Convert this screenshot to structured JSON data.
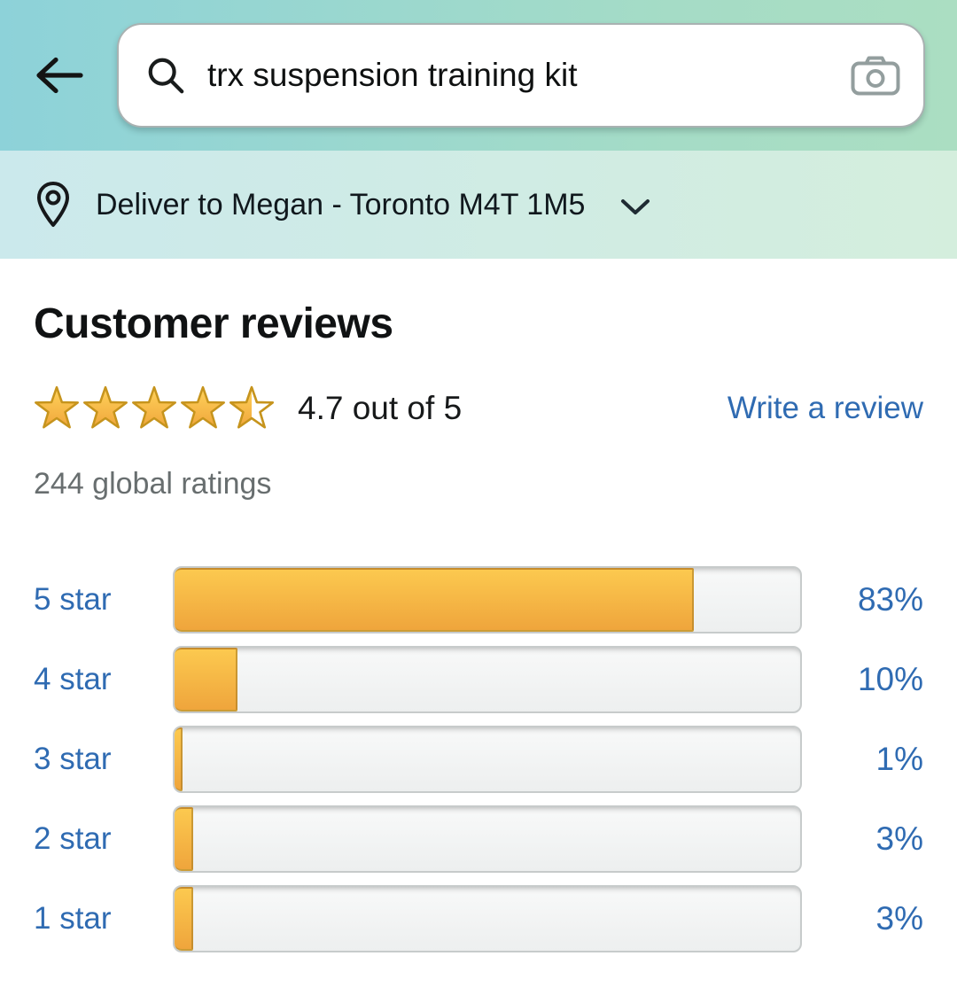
{
  "search": {
    "query": "trx suspension training kit"
  },
  "delivery": {
    "text": "Deliver to Megan - Toronto M4T 1M5"
  },
  "reviews": {
    "title": "Customer reviews",
    "rating_value": 4.7,
    "rating_max": 5,
    "rating_text": "4.7 out of 5",
    "write_review_label": "Write a review",
    "global_ratings_text": "244 global ratings"
  },
  "icons": {
    "back": "arrow-left",
    "search": "magnifier",
    "camera": "camera-outline",
    "location": "map-pin-outline",
    "expand": "chevron-down",
    "star": "five-point-star"
  },
  "colors": {
    "accent_blue": "#2f6bb2",
    "header_gradient_left": "#8dd2d9",
    "header_gradient_right": "#abdec2",
    "deliver_gradient_left": "#cbe9ec",
    "deliver_gradient_right": "#d4eedd",
    "star_gold_top": "#ffd35b",
    "star_gold_bottom": "#f0a63c",
    "star_stroke": "#c6941d",
    "bar_gold_top": "#fcc94f",
    "bar_gold_bottom": "#efa53c",
    "bar_track_bg": "#f1f2f2",
    "bar_track_border": "#c7cbcb",
    "muted_text": "#686e6f"
  },
  "chart_data": {
    "type": "bar",
    "orientation": "horizontal",
    "categories": [
      "5 star",
      "4 star",
      "3 star",
      "2 star",
      "1 star"
    ],
    "values": [
      83,
      10,
      1,
      3,
      3
    ],
    "value_labels": [
      "83%",
      "10%",
      "1%",
      "3%",
      "3%"
    ],
    "unit": "%",
    "xlim": [
      0,
      100
    ],
    "grid": false,
    "legend": false
  }
}
